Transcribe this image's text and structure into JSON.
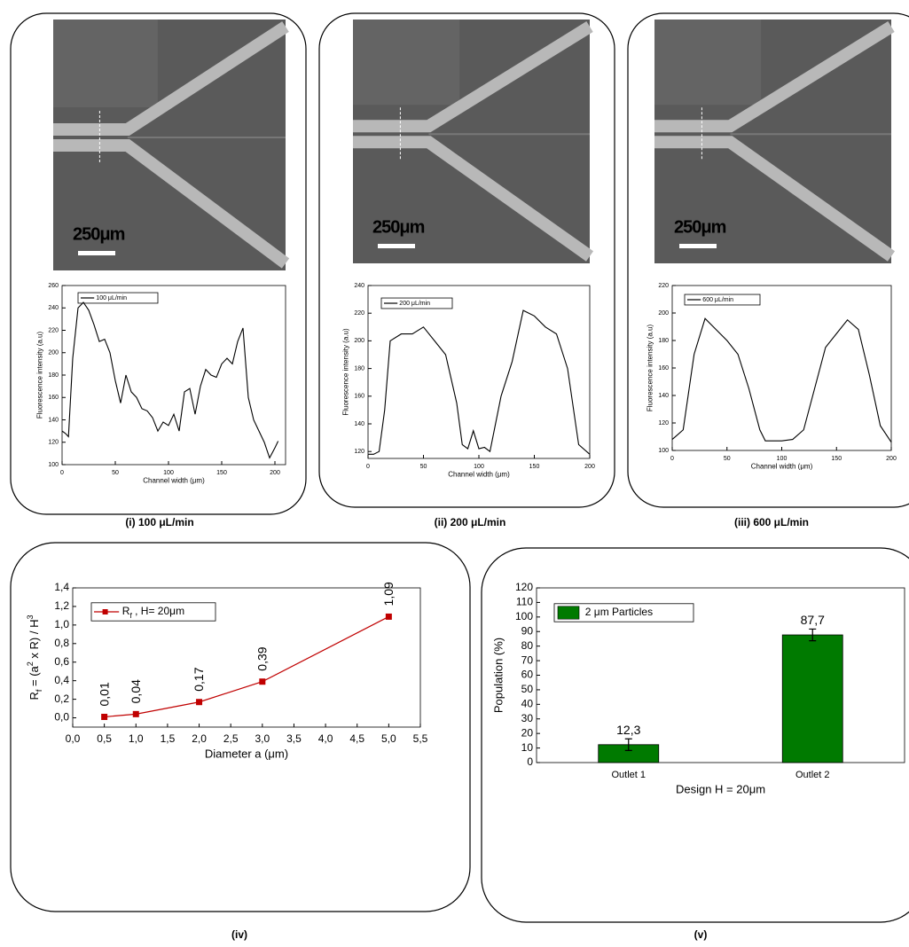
{
  "micrographs": [
    {
      "scale_label": "250μm"
    },
    {
      "scale_label": "250μm"
    },
    {
      "scale_label": "250μm"
    }
  ],
  "chart_data": [
    {
      "type": "line",
      "caption": "(i) 100 μL/min",
      "legend": "100 μL/min",
      "xlabel": "Channel width (μm)",
      "ylabel": "Fluorescence intensity (a.u)",
      "color": "#000000",
      "x": [
        0,
        3,
        6,
        10,
        15,
        20,
        25,
        30,
        35,
        40,
        45,
        50,
        55,
        60,
        65,
        70,
        75,
        80,
        85,
        90,
        95,
        100,
        105,
        110,
        115,
        120,
        125,
        130,
        135,
        140,
        145,
        150,
        155,
        160,
        165,
        170,
        175,
        180,
        185,
        190,
        195,
        200,
        203
      ],
      "values": [
        130,
        128,
        125,
        195,
        240,
        245,
        238,
        225,
        210,
        212,
        200,
        175,
        155,
        180,
        165,
        160,
        150,
        148,
        142,
        130,
        138,
        135,
        145,
        130,
        165,
        168,
        145,
        170,
        185,
        180,
        178,
        190,
        195,
        190,
        210,
        222,
        160,
        140,
        130,
        120,
        106,
        115,
        121
      ],
      "xlim": [
        0,
        210
      ],
      "xticks": [
        0,
        50,
        100,
        150,
        200
      ],
      "ylim": [
        100,
        260
      ],
      "yticks": [
        100,
        120,
        140,
        160,
        180,
        200,
        220,
        240,
        260
      ]
    },
    {
      "type": "line",
      "caption": "(ii) 200 μL/min",
      "legend": "200 μL/min",
      "xlabel": "Channel width (μm)",
      "ylabel": "Fluorescence intensity (a.u)",
      "color": "#000000",
      "x": [
        0,
        5,
        10,
        15,
        20,
        30,
        40,
        50,
        60,
        70,
        80,
        85,
        90,
        95,
        100,
        105,
        110,
        115,
        120,
        130,
        140,
        150,
        160,
        170,
        180,
        190,
        200
      ],
      "values": [
        118,
        118,
        120,
        150,
        200,
        205,
        205,
        210,
        200,
        190,
        155,
        125,
        122,
        135,
        122,
        123,
        120,
        140,
        160,
        185,
        222,
        218,
        210,
        205,
        180,
        125,
        118
      ],
      "xlim": [
        0,
        200
      ],
      "xticks": [
        0,
        50,
        100,
        150,
        200
      ],
      "ylim": [
        115,
        240
      ],
      "yticks": [
        120,
        140,
        160,
        180,
        200,
        220,
        240
      ]
    },
    {
      "type": "line",
      "caption": "(iii) 600 μL/min",
      "legend": "600 μL/min",
      "xlabel": "Channel width (μm)",
      "ylabel": "Fluorescence intensity (a.u)",
      "color": "#000000",
      "x": [
        0,
        10,
        20,
        30,
        40,
        50,
        60,
        70,
        80,
        85,
        90,
        100,
        110,
        120,
        130,
        140,
        150,
        160,
        170,
        180,
        190,
        200
      ],
      "values": [
        108,
        115,
        170,
        196,
        188,
        180,
        170,
        145,
        115,
        107,
        107,
        107,
        108,
        115,
        145,
        175,
        185,
        195,
        188,
        155,
        118,
        106
      ],
      "xlim": [
        0,
        200
      ],
      "xticks": [
        0,
        50,
        100,
        150,
        200
      ],
      "ylim": [
        100,
        220
      ],
      "yticks": [
        100,
        120,
        140,
        160,
        180,
        200,
        220
      ]
    },
    {
      "type": "line",
      "markers": true,
      "caption": "(iv)",
      "legend": [
        "R",
        "f",
        " , H= 20μm"
      ],
      "xlabel": "Diameter a (μm)",
      "ylabel": [
        "R",
        "f",
        " = (a",
        "2",
        " x R) / H",
        "3"
      ],
      "color": "#c00000",
      "x": [
        0.5,
        1,
        2,
        3,
        5
      ],
      "values": [
        0.01,
        0.04,
        0.17,
        0.39,
        1.09
      ],
      "value_labels": [
        "0,01",
        "0,04",
        "0,17",
        "0,39",
        "1,09"
      ],
      "xlim": [
        0,
        5.5
      ],
      "xticks": [
        {
          "value": 0,
          "label": "0,0"
        },
        {
          "value": 0.5,
          "label": "0,5"
        },
        {
          "value": 1,
          "label": "1,0"
        },
        {
          "value": 1.5,
          "label": "1,5"
        },
        {
          "value": 2,
          "label": "2,0"
        },
        {
          "value": 2.5,
          "label": "2,5"
        },
        {
          "value": 3,
          "label": "3,0"
        },
        {
          "value": 3.5,
          "label": "3,5"
        },
        {
          "value": 4,
          "label": "4,0"
        },
        {
          "value": 4.5,
          "label": "4,5"
        },
        {
          "value": 5,
          "label": "5,0"
        },
        {
          "value": 5.5,
          "label": "5,5"
        }
      ],
      "ylim": [
        -0.1,
        1.4
      ],
      "yticks": [
        {
          "value": 0,
          "label": "0,0"
        },
        {
          "value": 0.2,
          "label": "0,2"
        },
        {
          "value": 0.4,
          "label": "0,4"
        },
        {
          "value": 0.6,
          "label": "0,6"
        },
        {
          "value": 0.8,
          "label": "0,8"
        },
        {
          "value": 1,
          "label": "1,0"
        },
        {
          "value": 1.2,
          "label": "1,2"
        },
        {
          "value": 1.4,
          "label": "1,4"
        }
      ]
    },
    {
      "type": "bar",
      "caption": "(v)",
      "legend": "2 μm Particles",
      "xlabel": "Design H = 20μm",
      "ylabel": "Population (%)",
      "color": "#007a00",
      "categories": [
        "Outlet 1",
        "Outlet 2"
      ],
      "values": [
        12.3,
        87.7
      ],
      "value_labels": [
        "12,3",
        "87,7"
      ],
      "errors": [
        4,
        4
      ],
      "ylim": [
        0,
        120
      ],
      "yticks": [
        0,
        10,
        20,
        30,
        40,
        50,
        60,
        70,
        80,
        90,
        100,
        110,
        120
      ]
    }
  ]
}
